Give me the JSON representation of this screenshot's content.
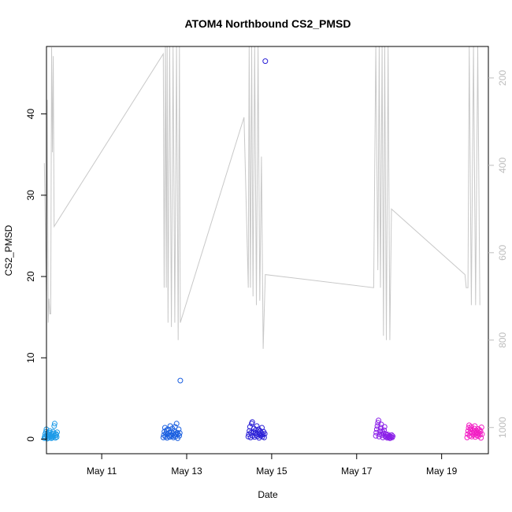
{
  "chart_data": {
    "type": "scatter",
    "title": "ATOM4 Northbound CS2_PMSD",
    "xlabel": "Date",
    "ylabel": "CS2_PMSD",
    "x_tick_labels": [
      "May 11",
      "May 13",
      "May 15",
      "May 17",
      "May 19"
    ],
    "x_ticks_day": [
      11,
      13,
      15,
      17,
      19
    ],
    "xlim_day": [
      9.7,
      20.1
    ],
    "ylim": [
      -1.8,
      48.3
    ],
    "y_ticks": [
      0,
      10,
      20,
      30,
      40
    ],
    "y_tick_labels": [
      "0",
      "10",
      "20",
      "30",
      "40"
    ],
    "y2_ticks": [
      200,
      400,
      600,
      800,
      1000
    ],
    "y2_tick_labels": [
      "200",
      "400",
      "600",
      "800",
      "1000"
    ],
    "y2_reversed": true,
    "y2_range": [
      1060,
      128
    ],
    "legend": "none",
    "grid": false,
    "colors": {
      "line": "#c8c8c8",
      "axis": "#000000",
      "secondary_axis": "#bdbdbd",
      "clusters": [
        "#1e9be8",
        "#1a5fe0",
        "#2a1fd6",
        "#8a1fe8",
        "#f21fc4"
      ]
    },
    "point_clusters": [
      {
        "color": "#1e9be8",
        "day_start": 9.65,
        "day_end": 9.95,
        "values": [
          0.1,
          0.3,
          0.6,
          0.2,
          0.9,
          1.2,
          0.4,
          0.05,
          0.7,
          0.3,
          0.5,
          0.15,
          0.8,
          1.0,
          0.25,
          0.45,
          0.6,
          0.1,
          0.35,
          0.55,
          0.2,
          0.9,
          0.3,
          0.7,
          1.6,
          1.9,
          0.4,
          0.15,
          0.65,
          0.5,
          0.25,
          0.85
        ]
      },
      {
        "color": "#1a5fe0",
        "day_start": 12.45,
        "day_end": 12.85,
        "values": [
          0.2,
          0.5,
          0.9,
          1.4,
          0.3,
          0.7,
          1.1,
          0.15,
          0.6,
          1.2,
          0.4,
          0.8,
          0.25,
          1.6,
          0.5,
          0.9,
          0.35,
          1.3,
          0.7,
          0.2,
          1.0,
          0.45,
          1.5,
          0.3,
          0.6,
          1.9,
          0.8,
          0.1,
          0.55,
          1.2,
          0.4,
          0.75,
          7.2
        ]
      },
      {
        "color": "#2a1fd6",
        "day_start": 14.45,
        "day_end": 14.85,
        "values": [
          0.3,
          0.6,
          1.0,
          1.5,
          0.2,
          0.8,
          1.9,
          2.1,
          0.4,
          0.9,
          1.3,
          0.25,
          0.7,
          1.1,
          0.5,
          1.6,
          0.35,
          0.85,
          1.2,
          0.15,
          0.6,
          1.0,
          0.4,
          0.75,
          1.4,
          0.3,
          0.55,
          0.9,
          0.2,
          0.65,
          46.5
        ]
      },
      {
        "color": "#8a1fe8",
        "day_start": 17.45,
        "day_end": 17.85,
        "values": [
          0.4,
          0.8,
          1.2,
          1.6,
          2.0,
          2.3,
          0.3,
          0.6,
          1.0,
          1.4,
          1.8,
          0.5,
          0.9,
          0.2,
          0.7,
          1.1,
          1.5,
          0.35,
          0.65,
          0.25,
          0.45,
          0.15,
          0.55,
          0.3,
          0.2,
          0.4,
          0.1,
          0.3,
          0.25,
          0.5,
          0.2,
          0.35
        ]
      },
      {
        "color": "#f21fc4",
        "day_start": 19.6,
        "day_end": 19.95,
        "values": [
          0.2,
          0.6,
          1.0,
          1.4,
          1.7,
          0.4,
          0.8,
          1.2,
          1.5,
          0.3,
          0.7,
          1.1,
          0.5,
          0.9,
          1.3,
          1.6,
          0.25,
          0.65,
          1.05,
          0.45,
          0.85,
          1.25,
          0.35,
          0.75,
          1.15,
          0.55,
          0.95,
          0.15,
          1.45,
          0.6
        ]
      }
    ],
    "secondary_line_points": [
      [
        9.65,
        395
      ],
      [
        9.7,
        705
      ],
      [
        9.72,
        250
      ],
      [
        9.74,
        760
      ],
      [
        9.76,
        705
      ],
      [
        9.78,
        740
      ],
      [
        9.8,
        740
      ],
      [
        9.82,
        130
      ],
      [
        9.84,
        370
      ],
      [
        9.86,
        150
      ],
      [
        9.88,
        540
      ],
      [
        12.45,
        145
      ],
      [
        12.47,
        680
      ],
      [
        12.5,
        128
      ],
      [
        12.52,
        680
      ],
      [
        12.54,
        128
      ],
      [
        12.56,
        760
      ],
      [
        12.6,
        128
      ],
      [
        12.64,
        770
      ],
      [
        12.68,
        128
      ],
      [
        12.72,
        760
      ],
      [
        12.76,
        128
      ],
      [
        12.8,
        800
      ],
      [
        12.83,
        128
      ],
      [
        12.85,
        760
      ],
      [
        14.35,
        290
      ],
      [
        14.45,
        680
      ],
      [
        14.47,
        128
      ],
      [
        14.5,
        680
      ],
      [
        14.53,
        128
      ],
      [
        14.56,
        700
      ],
      [
        14.6,
        128
      ],
      [
        14.64,
        720
      ],
      [
        14.68,
        128
      ],
      [
        14.72,
        710
      ],
      [
        14.76,
        380
      ],
      [
        14.8,
        820
      ],
      [
        14.85,
        650
      ],
      [
        17.4,
        680
      ],
      [
        17.45,
        128
      ],
      [
        17.5,
        640
      ],
      [
        17.53,
        128
      ],
      [
        17.56,
        680
      ],
      [
        17.6,
        128
      ],
      [
        17.63,
        790
      ],
      [
        17.66,
        128
      ],
      [
        17.7,
        800
      ],
      [
        17.74,
        128
      ],
      [
        17.78,
        800
      ],
      [
        17.82,
        500
      ],
      [
        19.55,
        650
      ],
      [
        19.58,
        680
      ],
      [
        19.62,
        680
      ],
      [
        19.65,
        128
      ],
      [
        19.7,
        720
      ],
      [
        19.75,
        128
      ],
      [
        19.8,
        720
      ],
      [
        19.85,
        128
      ],
      [
        19.9,
        720
      ]
    ]
  }
}
